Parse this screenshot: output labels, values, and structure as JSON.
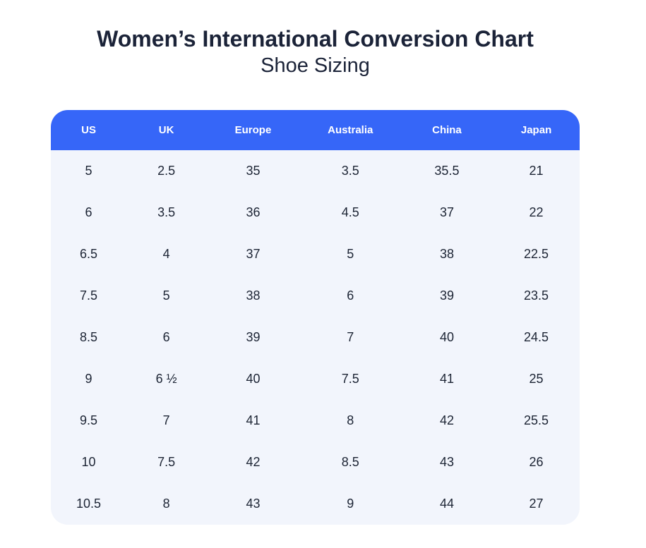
{
  "page": {
    "title": "Women’s International Conversion Chart",
    "subtitle": "Shoe Sizing"
  },
  "table": {
    "headers": [
      "US",
      "UK",
      "Europe",
      "Australia",
      "China",
      "Japan"
    ],
    "col_widths_pct": [
      14.3,
      15.1,
      17.7,
      19.1,
      17.4,
      16.4
    ],
    "rows": [
      [
        "5",
        "2.5",
        "35",
        "3.5",
        "35.5",
        "21"
      ],
      [
        "6",
        "3.5",
        "36",
        "4.5",
        "37",
        "22"
      ],
      [
        "6.5",
        "4",
        "37",
        "5",
        "38",
        "22.5"
      ],
      [
        "7.5",
        "5",
        "38",
        "6",
        "39",
        "23.5"
      ],
      [
        "8.5",
        "6",
        "39",
        "7",
        "40",
        "24.5"
      ],
      [
        "9",
        "6 ½",
        "40",
        "7.5",
        "41",
        "25"
      ],
      [
        "9.5",
        "7",
        "41",
        "8",
        "42",
        "25.5"
      ],
      [
        "10",
        "7.5",
        "42",
        "8.5",
        "43",
        "26"
      ],
      [
        "10.5",
        "8",
        "43",
        "9",
        "44",
        "27"
      ]
    ]
  },
  "colors": {
    "header_bg": "#3666F8",
    "body_bg": "#F2F5FC",
    "header_text": "#FFFFFF",
    "cell_text": "#1C2434",
    "title_text": "#1B2338",
    "page_bg": "#FFFFFF"
  },
  "chart_data": {
    "type": "table",
    "title": "Women’s International Conversion Chart",
    "subtitle": "Shoe Sizing",
    "columns": [
      "US",
      "UK",
      "Europe",
      "Australia",
      "China",
      "Japan"
    ],
    "rows": [
      [
        "5",
        "2.5",
        "35",
        "3.5",
        "35.5",
        "21"
      ],
      [
        "6",
        "3.5",
        "36",
        "4.5",
        "37",
        "22"
      ],
      [
        "6.5",
        "4",
        "37",
        "5",
        "38",
        "22.5"
      ],
      [
        "7.5",
        "5",
        "38",
        "6",
        "39",
        "23.5"
      ],
      [
        "8.5",
        "6",
        "39",
        "7",
        "40",
        "24.5"
      ],
      [
        "9",
        "6 ½",
        "40",
        "7.5",
        "41",
        "25"
      ],
      [
        "9.5",
        "7",
        "41",
        "8",
        "42",
        "25.5"
      ],
      [
        "10",
        "7.5",
        "42",
        "8.5",
        "43",
        "26"
      ],
      [
        "10.5",
        "8",
        "43",
        "9",
        "44",
        "27"
      ]
    ],
    "layout": {
      "header_style": "solid blue bar, white bold labels, rounded top corners",
      "body_style": "uniform light blue-gray background, no row dividers, rounded bottom corners",
      "alignment": "all cells center-aligned"
    }
  }
}
